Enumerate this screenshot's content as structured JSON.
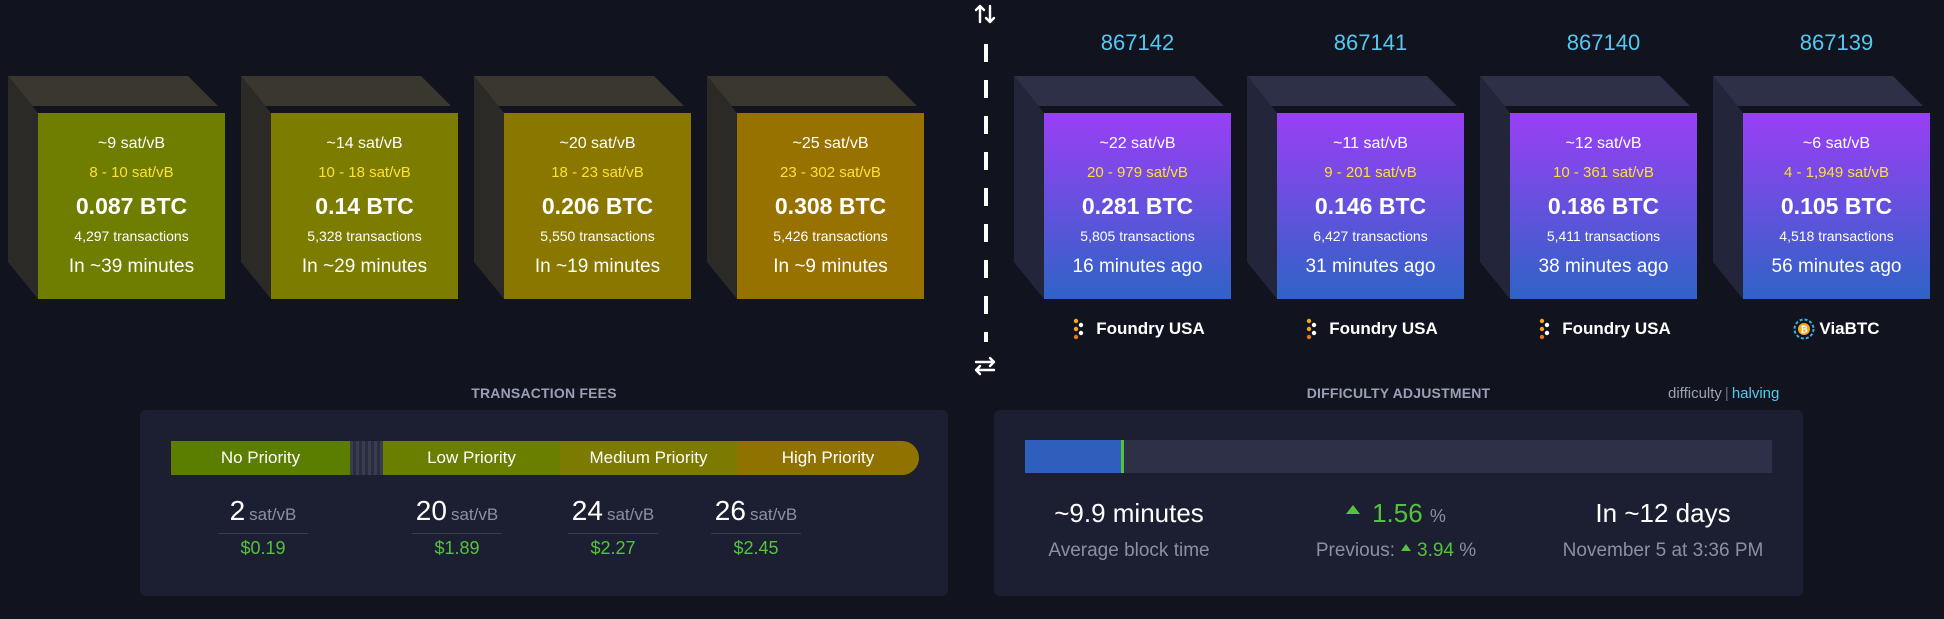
{
  "mempool_blocks": [
    {
      "median_fee": "~9 sat/vB",
      "fee_range": "8 - 10 sat/vB",
      "total_fees": "0.087 BTC",
      "transactions": "4,297 transactions",
      "eta": "In ~39 minutes",
      "color": "#6f7d00"
    },
    {
      "median_fee": "~14 sat/vB",
      "fee_range": "10 - 18 sat/vB",
      "total_fees": "0.14 BTC",
      "transactions": "5,328 transactions",
      "eta": "In ~29 minutes",
      "color": "#7c7c00"
    },
    {
      "median_fee": "~20 sat/vB",
      "fee_range": "18 - 23 sat/vB",
      "total_fees": "0.206 BTC",
      "transactions": "5,550 transactions",
      "eta": "In ~19 minutes",
      "color": "#8a7700"
    },
    {
      "median_fee": "~25 sat/vB",
      "fee_range": "23 - 302 sat/vB",
      "total_fees": "0.308 BTC",
      "transactions": "5,426 transactions",
      "eta": "In ~9 minutes",
      "color": "#987200"
    }
  ],
  "mined_blocks": [
    {
      "height": "867142",
      "median_fee": "~22 sat/vB",
      "fee_range": "20 - 979 sat/vB",
      "total_fees": "0.281 BTC",
      "transactions": "5,805 transactions",
      "time_ago": "16 minutes ago",
      "pool": "Foundry USA",
      "pool_icon": "foundry-icon"
    },
    {
      "height": "867141",
      "median_fee": "~11 sat/vB",
      "fee_range": "9 - 201 sat/vB",
      "total_fees": "0.146 BTC",
      "transactions": "6,427 transactions",
      "time_ago": "31 minutes ago",
      "pool": "Foundry USA",
      "pool_icon": "foundry-icon"
    },
    {
      "height": "867140",
      "median_fee": "~12 sat/vB",
      "fee_range": "10 - 361 sat/vB",
      "total_fees": "0.186 BTC",
      "transactions": "5,411 transactions",
      "time_ago": "38 minutes ago",
      "pool": "Foundry USA",
      "pool_icon": "foundry-icon"
    },
    {
      "height": "867139",
      "median_fee": "~6 sat/vB",
      "fee_range": "4 - 1,949 sat/vB",
      "total_fees": "0.105 BTC",
      "transactions": "4,518 transactions",
      "time_ago": "56 minutes ago",
      "pool": "ViaBTC",
      "pool_icon": "viabtc-icon"
    }
  ],
  "colors": {
    "mined_gradient_top": "#9a3ff5",
    "mined_gradient_bottom": "#2f63c6",
    "fee_range_text": "#ffe033",
    "block_height_text": "#55c8f0",
    "positive": "#54c23d",
    "progress_fill": "#2f5fbd"
  },
  "transaction_fees": {
    "title": "TRANSACTION FEES",
    "priorities": [
      {
        "label": "No Priority",
        "value": "2",
        "unit": "sat/vB",
        "usd": "$0.19"
      },
      {
        "label": "Low Priority",
        "value": "20",
        "unit": "sat/vB",
        "usd": "$1.89"
      },
      {
        "label": "Medium Priority",
        "value": "24",
        "unit": "sat/vB",
        "usd": "$2.27"
      },
      {
        "label": "High Priority",
        "value": "26",
        "unit": "sat/vB",
        "usd": "$2.45"
      }
    ]
  },
  "difficulty": {
    "title": "DIFFICULTY ADJUSTMENT",
    "tab_difficulty": "difficulty",
    "tab_separator": "|",
    "tab_halving": "halving",
    "progress_fraction": 0.13,
    "avg_block_time": "~9.9 minutes",
    "avg_block_time_label": "Average block time",
    "change_value": "1.56",
    "change_unit": "%",
    "previous_label": "Previous:",
    "previous_value": "3.94",
    "previous_unit": "%",
    "eta": "In ~12 days",
    "eta_date": "November 5 at 3:36 PM"
  }
}
